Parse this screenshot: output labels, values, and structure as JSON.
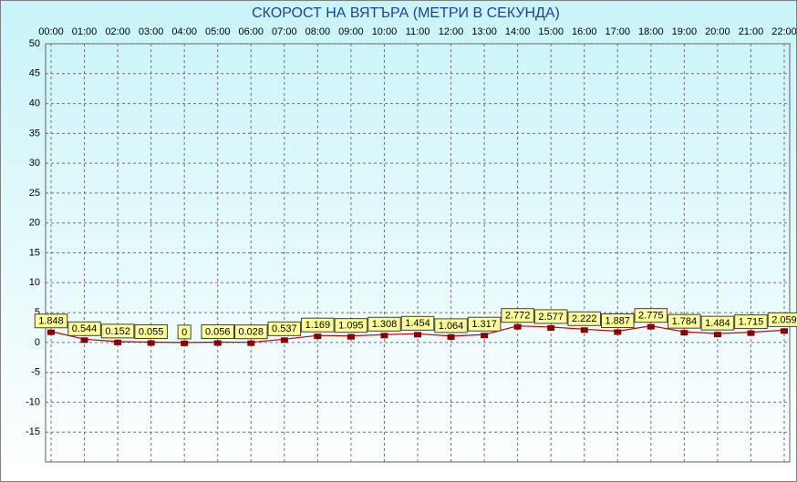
{
  "chart_data": {
    "type": "line",
    "title": "СКОРОСТ НА ВЯТЪРА (МЕТРИ В СЕКУНДА)",
    "categories": [
      "00:00",
      "01:00",
      "02:00",
      "03:00",
      "04:00",
      "05:00",
      "06:00",
      "07:00",
      "08:00",
      "09:00",
      "10:00",
      "11:00",
      "12:00",
      "13:00",
      "14:00",
      "15:00",
      "16:00",
      "17:00",
      "18:00",
      "19:00",
      "20:00",
      "21:00",
      "22:00"
    ],
    "values": [
      1.848,
      0.544,
      0.152,
      0.055,
      0,
      0.056,
      0.028,
      0.537,
      1.169,
      1.095,
      1.308,
      1.454,
      1.064,
      1.317,
      2.772,
      2.577,
      2.222,
      1.887,
      2.775,
      1.784,
      1.484,
      1.715,
      2.059
    ],
    "color": "#cc0000",
    "marker_color": "#8b0000",
    "label_fill": "#ffff99",
    "ylim": [
      -20,
      50
    ],
    "yticks": [
      -15,
      -10,
      -5,
      0,
      5,
      10,
      15,
      20,
      25,
      30,
      35,
      40,
      45,
      50
    ],
    "grid": true
  }
}
